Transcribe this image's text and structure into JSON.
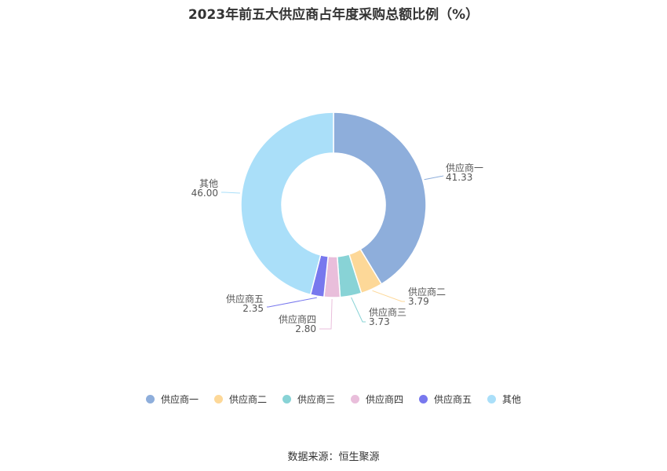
{
  "chart_data": {
    "type": "pie",
    "donut": true,
    "title": "2023年前五大供应商占年度采购总额比例（%）",
    "categories": [
      "供应商一",
      "供应商二",
      "供应商三",
      "供应商四",
      "供应商五",
      "其他"
    ],
    "values": [
      41.33,
      3.79,
      3.73,
      2.8,
      2.35,
      46.0
    ],
    "value_labels": [
      "41.33",
      "3.79",
      "3.73",
      "2.80",
      "2.35",
      "46.00"
    ],
    "colors": [
      "#8eaedb",
      "#fdd898",
      "#88d3d6",
      "#e9bedb",
      "#7878ee",
      "#aadff9"
    ],
    "legend_position": "bottom"
  },
  "source": "数据来源：恒生聚源"
}
